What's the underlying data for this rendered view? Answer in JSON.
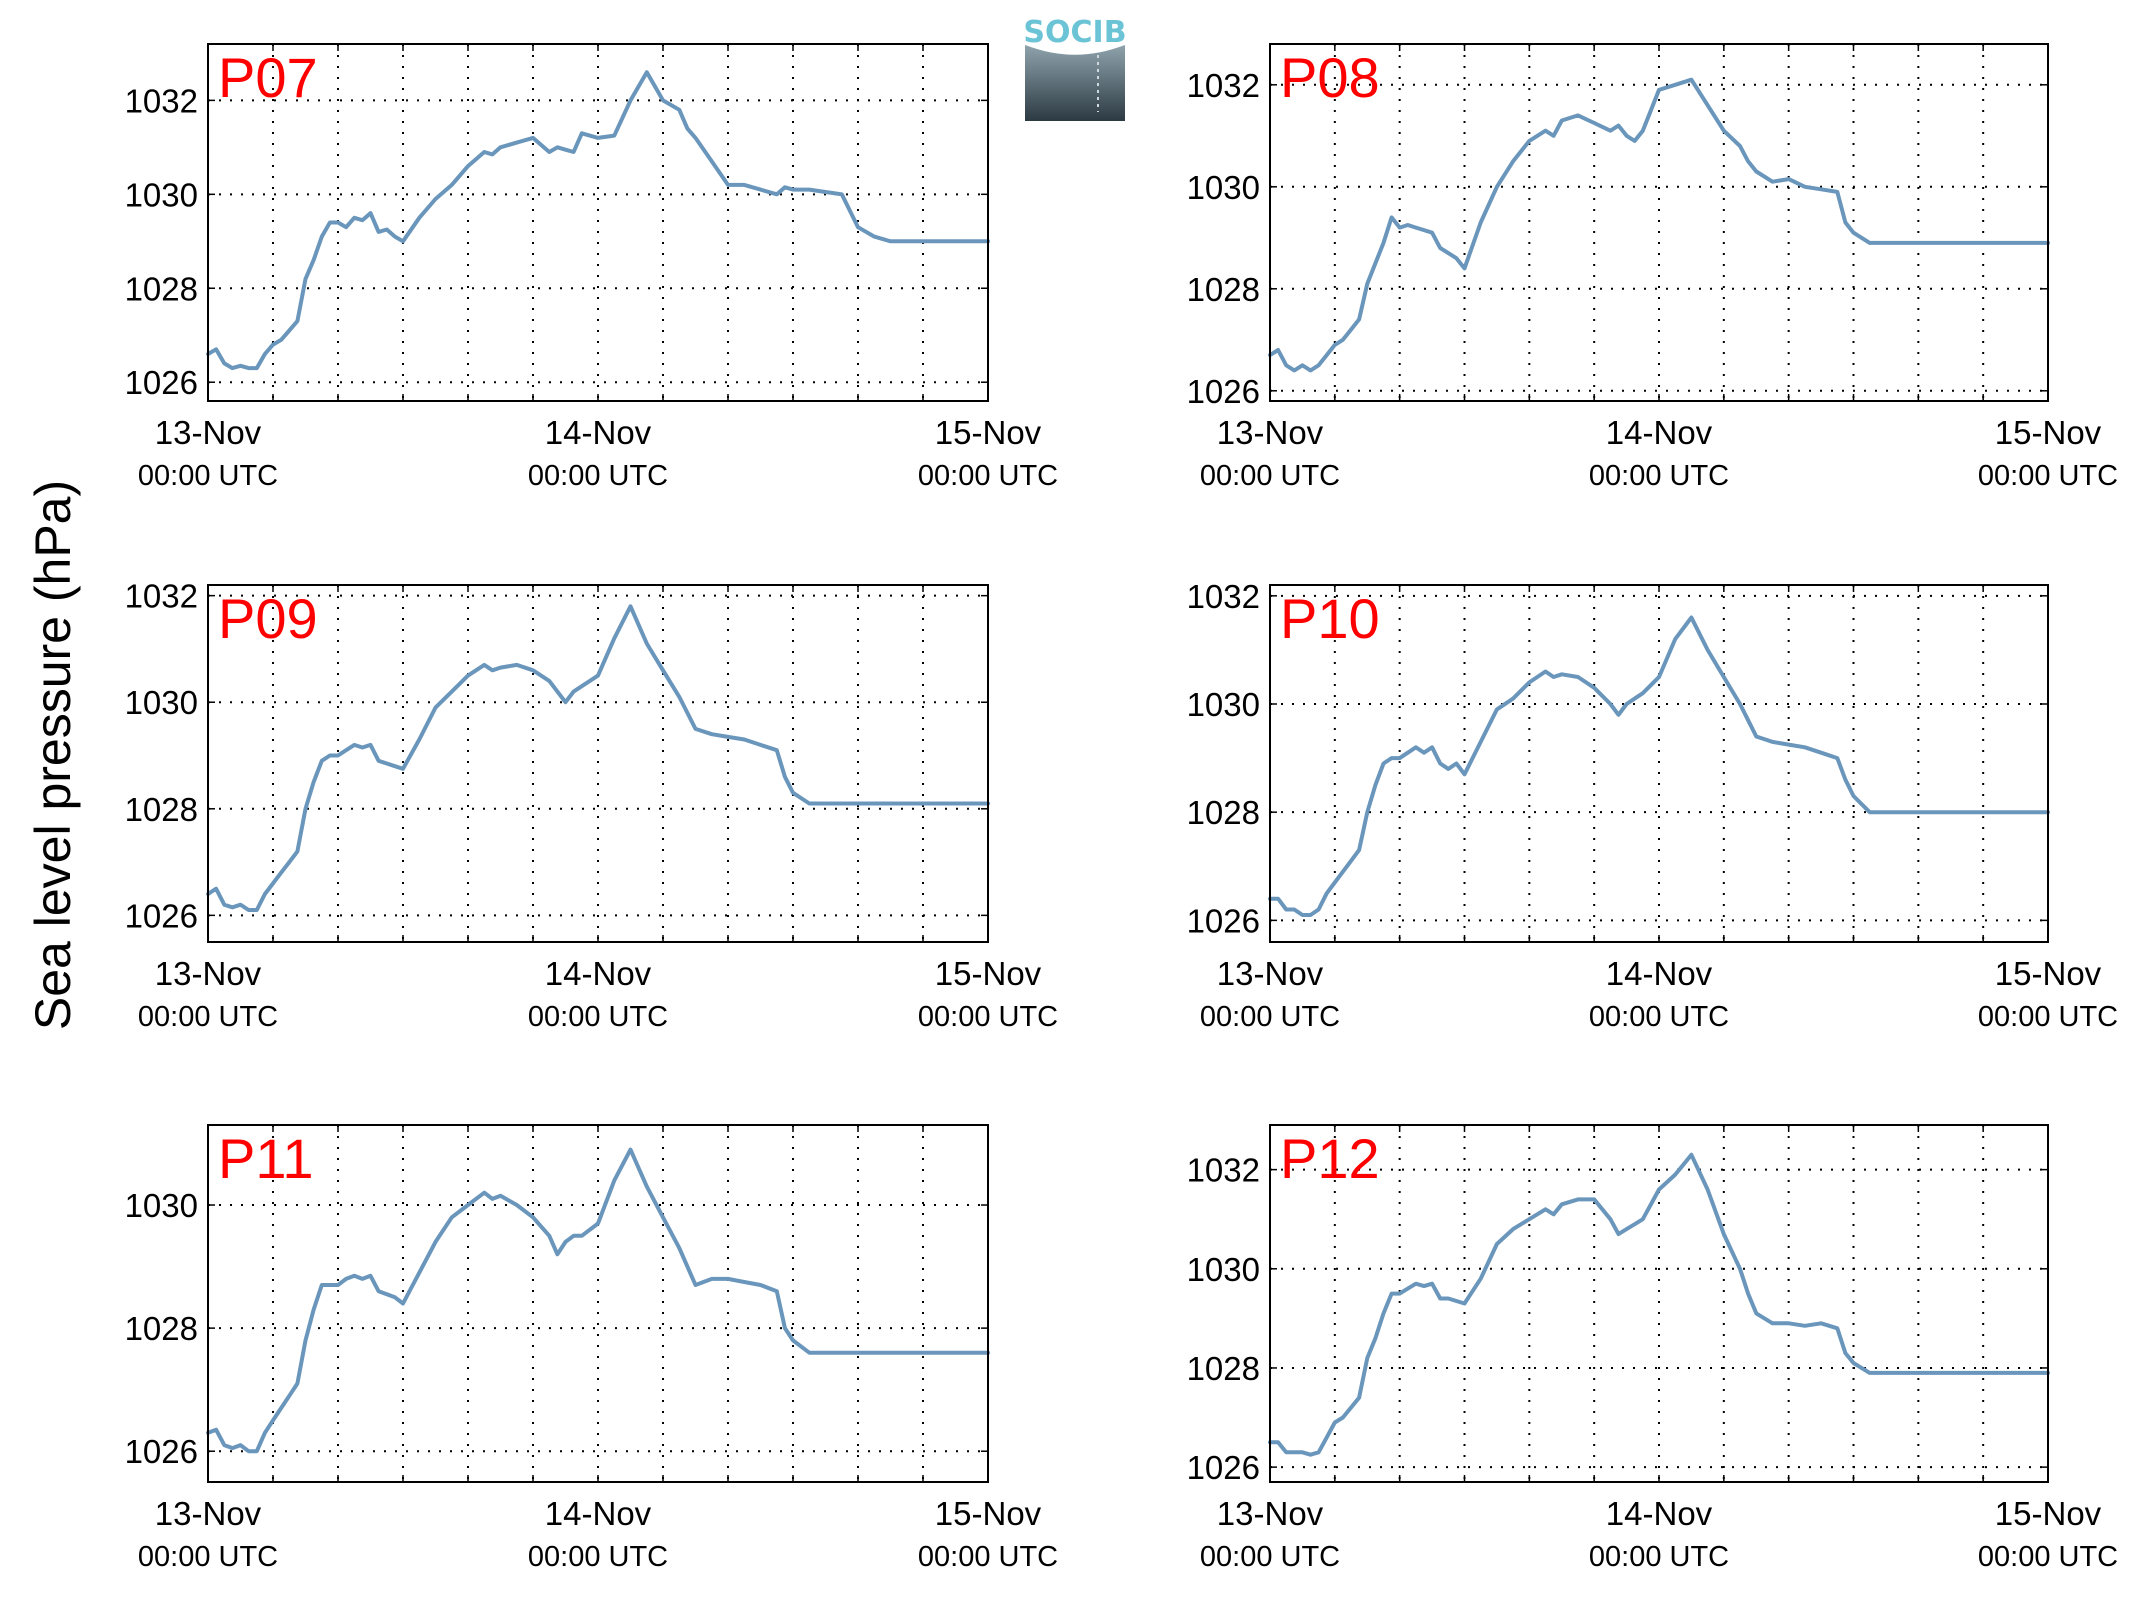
{
  "figure": {
    "ylabel": "Sea level pressure (hPa)",
    "logo_text": "SOCIB",
    "line_color": "#6a96bc",
    "label_color": "#ff0000",
    "logo_color": "#6bc3d6"
  },
  "chart_data": [
    {
      "type": "line",
      "title": "P07",
      "x_ticks": [
        {
          "main": "13-Nov",
          "sub": "00:00 UTC"
        },
        {
          "main": "14-Nov",
          "sub": "00:00 UTC"
        },
        {
          "main": "15-Nov",
          "sub": "00:00 UTC"
        }
      ],
      "xlim": [
        0,
        48
      ],
      "ylim": [
        1025.6,
        1033.2
      ],
      "yticks": [
        1026,
        1028,
        1030,
        1032
      ],
      "grid": true,
      "series": [
        {
          "x": [
            0,
            0.5,
            1,
            1.5,
            2,
            2.5,
            3,
            3.5,
            4,
            4.5,
            5,
            5.5,
            6,
            6.5,
            7,
            7.5,
            8,
            8.5,
            9,
            9.5,
            10,
            10.5,
            11,
            11.5,
            12,
            13,
            14,
            15,
            16,
            17,
            17.5,
            18,
            19,
            20,
            21,
            21.5,
            22,
            22.5,
            23,
            24,
            25,
            26,
            27,
            28,
            29,
            29.5,
            30,
            31,
            32,
            33,
            34,
            35,
            35.5,
            36,
            37,
            38,
            39,
            40,
            41,
            42,
            43,
            44,
            45,
            46,
            47,
            48
          ],
          "y": [
            1026.6,
            1026.7,
            1026.4,
            1026.3,
            1026.35,
            1026.3,
            1026.3,
            1026.6,
            1026.8,
            1026.9,
            1027.1,
            1027.3,
            1028.2,
            1028.6,
            1029.1,
            1029.4,
            1029.4,
            1029.3,
            1029.5,
            1029.45,
            1029.6,
            1029.2,
            1029.25,
            1029.1,
            1029.0,
            1029.5,
            1029.9,
            1030.2,
            1030.6,
            1030.9,
            1030.85,
            1031.0,
            1031.1,
            1031.2,
            1030.9,
            1031.0,
            1030.95,
            1030.9,
            1031.3,
            1031.2,
            1031.25,
            1032.0,
            1032.6,
            1032.0,
            1031.8,
            1031.4,
            1031.2,
            1030.7,
            1030.2,
            1030.2,
            1030.1,
            1030.0,
            1030.15,
            1030.1,
            1030.1,
            1030.05,
            1030.0,
            1029.3,
            1029.1,
            1029.0,
            1029.0,
            1029.0,
            1029.0,
            1029.0,
            1029.0,
            1029.0
          ]
        }
      ]
    },
    {
      "type": "line",
      "title": "P08",
      "x_ticks": [
        {
          "main": "13-Nov",
          "sub": "00:00 UTC"
        },
        {
          "main": "14-Nov",
          "sub": "00:00 UTC"
        },
        {
          "main": "15-Nov",
          "sub": "00:00 UTC"
        }
      ],
      "xlim": [
        0,
        48
      ],
      "ylim": [
        1025.8,
        1032.8
      ],
      "yticks": [
        1026,
        1028,
        1030,
        1032
      ],
      "grid": true,
      "series": [
        {
          "x": [
            0,
            0.5,
            1,
            1.5,
            2,
            2.5,
            3,
            3.5,
            4,
            4.5,
            5,
            5.5,
            6,
            6.5,
            7,
            7.5,
            8,
            8.5,
            9,
            9.5,
            10,
            10.5,
            11,
            11.5,
            12,
            13,
            14,
            15,
            16,
            17,
            17.5,
            18,
            19,
            20,
            21,
            21.5,
            22,
            22.5,
            23,
            24,
            25,
            26,
            27,
            28,
            29,
            29.5,
            30,
            31,
            32,
            33,
            34,
            35,
            35.5,
            36,
            37,
            38,
            39,
            40,
            41,
            42,
            43,
            44,
            45,
            46,
            47,
            48
          ],
          "y": [
            1026.7,
            1026.8,
            1026.5,
            1026.4,
            1026.5,
            1026.4,
            1026.5,
            1026.7,
            1026.9,
            1027.0,
            1027.2,
            1027.4,
            1028.1,
            1028.5,
            1028.9,
            1029.4,
            1029.2,
            1029.25,
            1029.2,
            1029.15,
            1029.1,
            1028.8,
            1028.7,
            1028.6,
            1028.4,
            1029.3,
            1030.0,
            1030.5,
            1030.9,
            1031.1,
            1031.0,
            1031.3,
            1031.4,
            1031.25,
            1031.1,
            1031.2,
            1031.0,
            1030.9,
            1031.1,
            1031.9,
            1032.0,
            1032.1,
            1031.6,
            1031.1,
            1030.8,
            1030.5,
            1030.3,
            1030.1,
            1030.15,
            1030.0,
            1029.95,
            1029.9,
            1029.3,
            1029.1,
            1028.9,
            1028.9,
            1028.9,
            1028.9,
            1028.9,
            1028.9,
            1028.9,
            1028.9,
            1028.9,
            1028.9,
            1028.9,
            1028.9
          ]
        }
      ]
    },
    {
      "type": "line",
      "title": "P09",
      "x_ticks": [
        {
          "main": "13-Nov",
          "sub": "00:00 UTC"
        },
        {
          "main": "14-Nov",
          "sub": "00:00 UTC"
        },
        {
          "main": "15-Nov",
          "sub": "00:00 UTC"
        }
      ],
      "xlim": [
        0,
        48
      ],
      "ylim": [
        1025.5,
        1032.2
      ],
      "yticks": [
        1026,
        1028,
        1030,
        1032
      ],
      "grid": true,
      "series": [
        {
          "x": [
            0,
            0.5,
            1,
            1.5,
            2,
            2.5,
            3,
            3.5,
            4,
            4.5,
            5,
            5.5,
            6,
            6.5,
            7,
            7.5,
            8,
            8.5,
            9,
            9.5,
            10,
            10.5,
            11,
            11.5,
            12,
            13,
            14,
            15,
            16,
            17,
            17.5,
            18,
            19,
            20,
            21,
            21.5,
            22,
            22.5,
            23,
            24,
            25,
            26,
            27,
            28,
            29,
            29.5,
            30,
            31,
            32,
            33,
            34,
            35,
            35.5,
            36,
            37,
            38,
            39,
            40,
            41,
            42,
            43,
            44,
            45,
            46,
            47,
            48
          ],
          "y": [
            1026.4,
            1026.5,
            1026.2,
            1026.15,
            1026.2,
            1026.1,
            1026.1,
            1026.4,
            1026.6,
            1026.8,
            1027.0,
            1027.2,
            1028.0,
            1028.5,
            1028.9,
            1029.0,
            1029.0,
            1029.1,
            1029.2,
            1029.15,
            1029.2,
            1028.9,
            1028.85,
            1028.8,
            1028.75,
            1029.3,
            1029.9,
            1030.2,
            1030.5,
            1030.7,
            1030.6,
            1030.65,
            1030.7,
            1030.6,
            1030.4,
            1030.2,
            1030.0,
            1030.2,
            1030.3,
            1030.5,
            1031.2,
            1031.8,
            1031.1,
            1030.6,
            1030.1,
            1029.8,
            1029.5,
            1029.4,
            1029.35,
            1029.3,
            1029.2,
            1029.1,
            1028.6,
            1028.3,
            1028.1,
            1028.1,
            1028.1,
            1028.1,
            1028.1,
            1028.1,
            1028.1,
            1028.1,
            1028.1,
            1028.1,
            1028.1,
            1028.1
          ]
        }
      ]
    },
    {
      "type": "line",
      "title": "P10",
      "x_ticks": [
        {
          "main": "13-Nov",
          "sub": "00:00 UTC"
        },
        {
          "main": "14-Nov",
          "sub": "00:00 UTC"
        },
        {
          "main": "15-Nov",
          "sub": "00:00 UTC"
        }
      ],
      "xlim": [
        0,
        48
      ],
      "ylim": [
        1025.6,
        1032.2
      ],
      "yticks": [
        1026,
        1028,
        1030,
        1032
      ],
      "grid": true,
      "series": [
        {
          "x": [
            0,
            0.5,
            1,
            1.5,
            2,
            2.5,
            3,
            3.5,
            4,
            4.5,
            5,
            5.5,
            6,
            6.5,
            7,
            7.5,
            8,
            8.5,
            9,
            9.5,
            10,
            10.5,
            11,
            11.5,
            12,
            13,
            14,
            15,
            16,
            17,
            17.5,
            18,
            19,
            20,
            21,
            21.5,
            22,
            22.5,
            23,
            24,
            25,
            26,
            27,
            28,
            29,
            29.5,
            30,
            31,
            32,
            33,
            34,
            35,
            35.5,
            36,
            37,
            38,
            39,
            40,
            41,
            42,
            43,
            44,
            45,
            46,
            47,
            48
          ],
          "y": [
            1026.4,
            1026.4,
            1026.2,
            1026.2,
            1026.1,
            1026.1,
            1026.2,
            1026.5,
            1026.7,
            1026.9,
            1027.1,
            1027.3,
            1028.0,
            1028.5,
            1028.9,
            1029.0,
            1029.0,
            1029.1,
            1029.2,
            1029.1,
            1029.2,
            1028.9,
            1028.8,
            1028.9,
            1028.7,
            1029.3,
            1029.9,
            1030.1,
            1030.4,
            1030.6,
            1030.5,
            1030.55,
            1030.5,
            1030.3,
            1030.0,
            1029.8,
            1030.0,
            1030.1,
            1030.2,
            1030.5,
            1031.2,
            1031.6,
            1031.0,
            1030.5,
            1030.0,
            1029.7,
            1029.4,
            1029.3,
            1029.25,
            1029.2,
            1029.1,
            1029.0,
            1028.6,
            1028.3,
            1028.0,
            1028.0,
            1028.0,
            1028.0,
            1028.0,
            1028.0,
            1028.0,
            1028.0,
            1028.0,
            1028.0,
            1028.0,
            1028.0
          ]
        }
      ]
    },
    {
      "type": "line",
      "title": "P11",
      "x_ticks": [
        {
          "main": "13-Nov",
          "sub": "00:00 UTC"
        },
        {
          "main": "14-Nov",
          "sub": "00:00 UTC"
        },
        {
          "main": "15-Nov",
          "sub": "00:00 UTC"
        }
      ],
      "xlim": [
        0,
        48
      ],
      "ylim": [
        1025.5,
        1031.3
      ],
      "yticks": [
        1026,
        1028,
        1030
      ],
      "grid": true,
      "series": [
        {
          "x": [
            0,
            0.5,
            1,
            1.5,
            2,
            2.5,
            3,
            3.5,
            4,
            4.5,
            5,
            5.5,
            6,
            6.5,
            7,
            7.5,
            8,
            8.5,
            9,
            9.5,
            10,
            10.5,
            11,
            11.5,
            12,
            13,
            14,
            15,
            16,
            17,
            17.5,
            18,
            19,
            20,
            21,
            21.5,
            22,
            22.5,
            23,
            24,
            25,
            26,
            27,
            28,
            29,
            29.5,
            30,
            31,
            32,
            33,
            34,
            35,
            35.5,
            36,
            37,
            38,
            39,
            40,
            41,
            42,
            43,
            44,
            45,
            46,
            47,
            48
          ],
          "y": [
            1026.3,
            1026.35,
            1026.1,
            1026.05,
            1026.1,
            1026.0,
            1026.0,
            1026.3,
            1026.5,
            1026.7,
            1026.9,
            1027.1,
            1027.8,
            1028.3,
            1028.7,
            1028.7,
            1028.7,
            1028.8,
            1028.85,
            1028.8,
            1028.85,
            1028.6,
            1028.55,
            1028.5,
            1028.4,
            1028.9,
            1029.4,
            1029.8,
            1030.0,
            1030.2,
            1030.1,
            1030.15,
            1030.0,
            1029.8,
            1029.5,
            1029.2,
            1029.4,
            1029.5,
            1029.5,
            1029.7,
            1030.4,
            1030.9,
            1030.3,
            1029.8,
            1029.3,
            1029.0,
            1028.7,
            1028.8,
            1028.8,
            1028.75,
            1028.7,
            1028.6,
            1028.0,
            1027.8,
            1027.6,
            1027.6,
            1027.6,
            1027.6,
            1027.6,
            1027.6,
            1027.6,
            1027.6,
            1027.6,
            1027.6,
            1027.6,
            1027.6
          ]
        }
      ]
    },
    {
      "type": "line",
      "title": "P12",
      "x_ticks": [
        {
          "main": "13-Nov",
          "sub": "00:00 UTC"
        },
        {
          "main": "14-Nov",
          "sub": "00:00 UTC"
        },
        {
          "main": "15-Nov",
          "sub": "00:00 UTC"
        }
      ],
      "xlim": [
        0,
        48
      ],
      "ylim": [
        1025.7,
        1032.9
      ],
      "yticks": [
        1026,
        1028,
        1030,
        1032
      ],
      "grid": true,
      "series": [
        {
          "x": [
            0,
            0.5,
            1,
            1.5,
            2,
            2.5,
            3,
            3.5,
            4,
            4.5,
            5,
            5.5,
            6,
            6.5,
            7,
            7.5,
            8,
            8.5,
            9,
            9.5,
            10,
            10.5,
            11,
            11.5,
            12,
            13,
            14,
            15,
            16,
            17,
            17.5,
            18,
            19,
            20,
            21,
            21.5,
            22,
            22.5,
            23,
            24,
            25,
            26,
            27,
            28,
            29,
            29.5,
            30,
            31,
            32,
            33,
            34,
            35,
            35.5,
            36,
            37,
            38,
            39,
            40,
            41,
            42,
            43,
            44,
            45,
            46,
            47,
            48
          ],
          "y": [
            1026.5,
            1026.5,
            1026.3,
            1026.3,
            1026.3,
            1026.25,
            1026.3,
            1026.6,
            1026.9,
            1027.0,
            1027.2,
            1027.4,
            1028.2,
            1028.6,
            1029.1,
            1029.5,
            1029.5,
            1029.6,
            1029.7,
            1029.65,
            1029.7,
            1029.4,
            1029.4,
            1029.35,
            1029.3,
            1029.8,
            1030.5,
            1030.8,
            1031.0,
            1031.2,
            1031.1,
            1031.3,
            1031.4,
            1031.4,
            1031.0,
            1030.7,
            1030.8,
            1030.9,
            1031.0,
            1031.6,
            1031.9,
            1032.3,
            1031.6,
            1030.7,
            1030.0,
            1029.5,
            1029.1,
            1028.9,
            1028.9,
            1028.85,
            1028.9,
            1028.8,
            1028.3,
            1028.1,
            1027.9,
            1027.9,
            1027.9,
            1027.9,
            1027.9,
            1027.9,
            1027.9,
            1027.9,
            1027.9,
            1027.9,
            1027.9,
            1027.9
          ]
        }
      ]
    }
  ]
}
